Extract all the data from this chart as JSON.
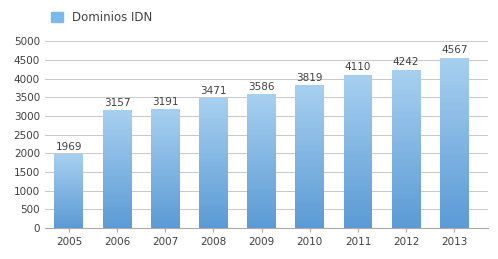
{
  "years": [
    2005,
    2006,
    2007,
    2008,
    2009,
    2010,
    2011,
    2012,
    2013
  ],
  "values": [
    1969,
    3157,
    3191,
    3471,
    3586,
    3819,
    4110,
    4242,
    4567
  ],
  "bar_color_top": "#92C5E8",
  "bar_color_bottom": "#5B9BD5",
  "background_color": "#ffffff",
  "plot_background": "#ffffff",
  "grid_color": "#c8c8c8",
  "text_color": "#404040",
  "legend_label": "Dominios IDN",
  "legend_color": "#7CB9E8",
  "ylim": [
    0,
    5000
  ],
  "yticks": [
    0,
    500,
    1000,
    1500,
    2000,
    2500,
    3000,
    3500,
    4000,
    4500,
    5000
  ],
  "label_fontsize": 7.5,
  "tick_fontsize": 7.5,
  "legend_fontsize": 8.5,
  "bar_width": 0.6
}
